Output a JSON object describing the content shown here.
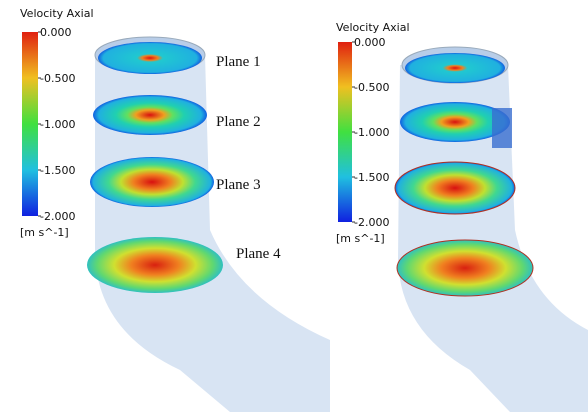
{
  "panels": [
    {
      "colorbar": {
        "title": "Velocity Axial",
        "unit": "[m s^-1]",
        "range": [
          -2,
          0
        ],
        "ticks": [
          {
            "value": 0,
            "label": "0.000"
          },
          {
            "value": -0.5,
            "label": "-0.500"
          },
          {
            "value": -1,
            "label": "-1.000"
          },
          {
            "value": -1.5,
            "label": "-1.500"
          },
          {
            "value": -2,
            "label": "-2.000"
          }
        ]
      },
      "planes": [
        "Plane 1",
        "Plane 2",
        "Plane 3",
        "Plane 4"
      ]
    },
    {
      "colorbar": {
        "title": "Velocity Axial",
        "unit": "[m s^-1]",
        "range": [
          -2,
          0
        ],
        "ticks": [
          {
            "value": 0,
            "label": "0.000"
          },
          {
            "value": -0.5,
            "label": "-0.500"
          },
          {
            "value": -1,
            "label": "-1.000"
          },
          {
            "value": -1.5,
            "label": "-1.500"
          },
          {
            "value": -2,
            "label": "-2.000"
          }
        ]
      }
    }
  ]
}
